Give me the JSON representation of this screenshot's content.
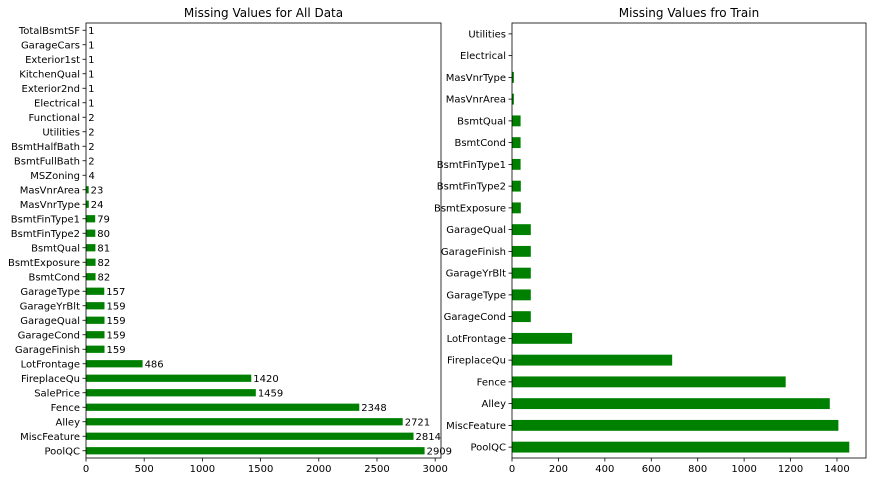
{
  "colors": {
    "bar": "#008000",
    "axis": "#000000",
    "background": "#ffffff"
  },
  "chart_data": [
    {
      "type": "bar",
      "orientation": "horizontal",
      "title": "Missing Values for All Data",
      "categories": [
        "PoolQC",
        "MiscFeature",
        "Alley",
        "Fence",
        "SalePrice",
        "FireplaceQu",
        "LotFrontage",
        "GarageFinish",
        "GarageCond",
        "GarageQual",
        "GarageYrBlt",
        "GarageType",
        "BsmtCond",
        "BsmtExposure",
        "BsmtQual",
        "BsmtFinType2",
        "BsmtFinType1",
        "MasVnrType",
        "MasVnrArea",
        "MSZoning",
        "BsmtFullBath",
        "BsmtHalfBath",
        "Utilities",
        "Functional",
        "Electrical",
        "Exterior2nd",
        "KitchenQual",
        "Exterior1st",
        "GarageCars",
        "TotalBsmtSF"
      ],
      "values": [
        2909,
        2814,
        2721,
        2348,
        1459,
        1420,
        486,
        159,
        159,
        159,
        159,
        157,
        82,
        82,
        81,
        80,
        79,
        24,
        23,
        4,
        2,
        2,
        2,
        2,
        1,
        1,
        1,
        1,
        1,
        1
      ],
      "data_labels": true,
      "xlim": [
        0,
        3050
      ],
      "xticks": [
        0,
        500,
        1000,
        1500,
        2000,
        2500,
        3000
      ],
      "xlabel": "",
      "ylabel": "",
      "grid": false
    },
    {
      "type": "bar",
      "orientation": "horizontal",
      "title": "Missing Values fro Train",
      "categories": [
        "PoolQC",
        "MiscFeature",
        "Alley",
        "Fence",
        "FireplaceQu",
        "LotFrontage",
        "GarageCond",
        "GarageType",
        "GarageYrBlt",
        "GarageFinish",
        "GarageQual",
        "BsmtExposure",
        "BsmtFinType2",
        "BsmtFinType1",
        "BsmtCond",
        "BsmtQual",
        "MasVnrArea",
        "MasVnrType",
        "Electrical",
        "Utilities"
      ],
      "values": [
        1453,
        1406,
        1369,
        1179,
        690,
        259,
        81,
        81,
        81,
        81,
        81,
        38,
        38,
        37,
        37,
        37,
        8,
        8,
        1,
        0
      ],
      "data_labels": false,
      "xlim": [
        0,
        1525
      ],
      "xticks": [
        0,
        200,
        400,
        600,
        800,
        1000,
        1200,
        1400
      ],
      "xlabel": "",
      "ylabel": "",
      "grid": false
    }
  ]
}
